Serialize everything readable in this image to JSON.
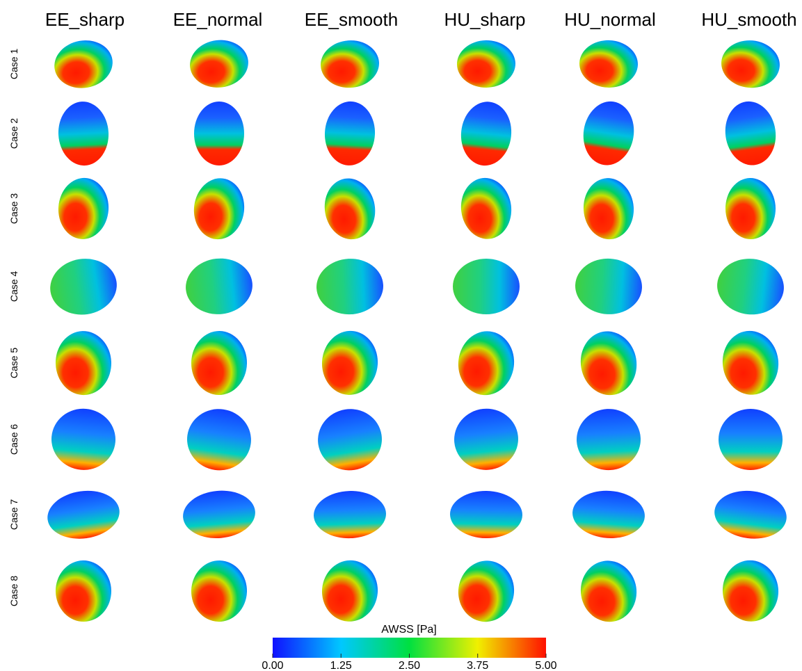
{
  "header": {
    "columns": [
      "EE_sharp",
      "EE_normal",
      "EE_smooth",
      "HU_sharp",
      "HU_normal",
      "HU_smooth"
    ]
  },
  "rows": [
    "Case 1",
    "Case 2",
    "Case 3",
    "Case 4",
    "Case 5",
    "Case 6",
    "Case 7",
    "Case 8"
  ],
  "colorbar": {
    "title": "AWSS [Pa]",
    "lim": [
      0,
      5
    ],
    "ticks": [
      {
        "value": 0,
        "label": "0.00"
      },
      {
        "value": 1.25,
        "label": "1.25"
      },
      {
        "value": 2.5,
        "label": "2.50"
      },
      {
        "value": 3.75,
        "label": "3.75"
      },
      {
        "value": 5,
        "label": "5.00"
      }
    ]
  }
}
